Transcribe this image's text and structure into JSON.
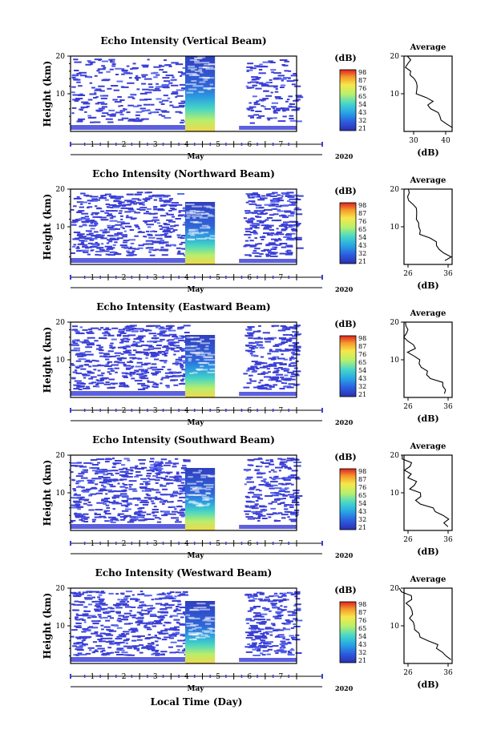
{
  "figure": {
    "xlabel": "Local Time (Day)"
  },
  "chart_data": [
    {
      "type": "heatmap",
      "title": "Echo Intensity (Vertical Beam)",
      "ylabel": "Height (km)",
      "month_label": "May",
      "year_label": "2020",
      "x_ticks": [
        "1",
        "2",
        "3",
        "4",
        "5",
        "6",
        "7"
      ],
      "y_ticks": [
        "10",
        "20"
      ],
      "ylim": [
        0,
        20
      ],
      "colorbar": {
        "unit": "(dB)",
        "ticks": [
          "98",
          "87",
          "76",
          "65",
          "54",
          "43",
          "32",
          "21"
        ]
      },
      "data_gap_days": [
        4.9,
        5.8
      ],
      "strong_echo_window_days": [
        3.95,
        4.9
      ],
      "average": {
        "title": "Average",
        "xlabel": "(dB)",
        "x_ticks": [
          "30",
          "40"
        ],
        "y_ticks": [
          "10",
          "20"
        ],
        "xlim": [
          27,
          42
        ],
        "ylim": [
          0,
          20
        ],
        "profile_heights": [
          1,
          2,
          3,
          4,
          5,
          6,
          7,
          8,
          9,
          10,
          11,
          12,
          13,
          14,
          15,
          16,
          17,
          18,
          19,
          20
        ],
        "profile_values": [
          41,
          40,
          38,
          37,
          37,
          35,
          35,
          35,
          33,
          32,
          32,
          31,
          30,
          30,
          29,
          29,
          28,
          28,
          28,
          27
        ]
      }
    },
    {
      "type": "heatmap",
      "title": "Echo Intensity (Northward Beam)",
      "ylabel": "Height (km)",
      "month_label": "May",
      "year_label": "2020",
      "x_ticks": [
        "1",
        "2",
        "3",
        "4",
        "5",
        "6",
        "7"
      ],
      "y_ticks": [
        "10",
        "20"
      ],
      "ylim": [
        0,
        20
      ],
      "colorbar": {
        "unit": "(dB)",
        "ticks": [
          "98",
          "87",
          "76",
          "65",
          "54",
          "43",
          "32",
          "21"
        ]
      },
      "data_gap_days": [
        4.9,
        5.8
      ],
      "strong_echo_window_days": [
        3.95,
        4.9
      ],
      "average": {
        "title": "Average",
        "xlabel": "(dB)",
        "x_ticks": [
          "26",
          "36"
        ],
        "y_ticks": [
          "10",
          "20"
        ],
        "xlim": [
          25,
          37
        ],
        "ylim": [
          0,
          20
        ],
        "profile_heights": [
          1,
          2,
          3,
          4,
          5,
          6,
          7,
          8,
          9,
          10,
          11,
          12,
          13,
          14,
          15,
          16,
          17,
          18,
          19,
          20
        ],
        "profile_values": [
          36,
          36,
          35,
          34,
          33,
          32,
          31,
          30,
          29,
          29,
          28,
          28,
          28,
          27,
          27,
          27,
          26,
          26,
          26,
          25
        ]
      }
    },
    {
      "type": "heatmap",
      "title": "Echo Intensity (Eastward Beam)",
      "ylabel": "Height (km)",
      "month_label": "May",
      "year_label": "2020",
      "x_ticks": [
        "1",
        "2",
        "3",
        "4",
        "5",
        "6",
        "7"
      ],
      "y_ticks": [
        "10",
        "20"
      ],
      "ylim": [
        0,
        20
      ],
      "colorbar": {
        "unit": "(dB)",
        "ticks": [
          "98",
          "87",
          "76",
          "65",
          "54",
          "43",
          "32",
          "21"
        ]
      },
      "data_gap_days": [
        4.9,
        5.8
      ],
      "strong_echo_window_days": [
        3.95,
        4.9
      ],
      "average": {
        "title": "Average",
        "xlabel": "(dB)",
        "x_ticks": [
          "26",
          "36"
        ],
        "y_ticks": [
          "10",
          "20"
        ],
        "xlim": [
          25,
          37
        ],
        "ylim": [
          0,
          20
        ],
        "profile_heights": [
          1,
          2,
          3,
          4,
          5,
          6,
          7,
          8,
          9,
          10,
          11,
          12,
          13,
          14,
          15,
          16,
          17,
          18,
          19,
          20
        ],
        "profile_values": [
          36,
          36,
          35,
          34,
          32,
          31,
          30,
          29,
          28,
          28,
          27,
          27,
          27,
          27,
          26,
          26,
          26,
          26,
          25,
          25
        ]
      }
    },
    {
      "type": "heatmap",
      "title": "Echo Intensity (Southward Beam)",
      "ylabel": "Height (km)",
      "month_label": "May",
      "year_label": "2020",
      "x_ticks": [
        "1",
        "2",
        "3",
        "4",
        "5",
        "6",
        "7"
      ],
      "y_ticks": [
        "10",
        "20"
      ],
      "ylim": [
        0,
        20
      ],
      "colorbar": {
        "unit": "(dB)",
        "ticks": [
          "98",
          "87",
          "76",
          "65",
          "54",
          "43",
          "32",
          "21"
        ]
      },
      "data_gap_days": [
        4.9,
        5.8
      ],
      "strong_echo_window_days": [
        3.95,
        4.9
      ],
      "average": {
        "title": "Average",
        "xlabel": "(dB)",
        "x_ticks": [
          "26",
          "36"
        ],
        "y_ticks": [
          "10",
          "20"
        ],
        "xlim": [
          25,
          37
        ],
        "ylim": [
          0,
          20
        ],
        "profile_heights": [
          1,
          2,
          3,
          4,
          5,
          6,
          7,
          8,
          9,
          10,
          11,
          12,
          13,
          14,
          15,
          16,
          17,
          18,
          19,
          20
        ],
        "profile_values": [
          36,
          36,
          35,
          34,
          33,
          32,
          30,
          29,
          28,
          28,
          27,
          27,
          27,
          27,
          26,
          26,
          26,
          26,
          25,
          25
        ]
      }
    },
    {
      "type": "heatmap",
      "title": "Echo Intensity (Westward Beam)",
      "ylabel": "Height (km)",
      "month_label": "May",
      "year_label": "2020",
      "x_ticks": [
        "1",
        "2",
        "3",
        "4",
        "5",
        "6",
        "7"
      ],
      "y_ticks": [
        "10",
        "20"
      ],
      "ylim": [
        0,
        20
      ],
      "colorbar": {
        "unit": "(dB)",
        "ticks": [
          "98",
          "87",
          "76",
          "65",
          "54",
          "43",
          "32",
          "21"
        ]
      },
      "data_gap_days": [
        4.9,
        5.8
      ],
      "strong_echo_window_days": [
        3.95,
        4.9
      ],
      "average": {
        "title": "Average",
        "xlabel": "(dB)",
        "x_ticks": [
          "26",
          "36"
        ],
        "y_ticks": [
          "10",
          "20"
        ],
        "xlim": [
          25,
          37
        ],
        "ylim": [
          0,
          20
        ],
        "profile_heights": [
          1,
          2,
          3,
          4,
          5,
          6,
          7,
          8,
          9,
          10,
          11,
          12,
          13,
          14,
          15,
          16,
          17,
          18,
          19,
          20
        ],
        "profile_values": [
          36,
          36,
          35,
          34,
          33,
          31,
          30,
          29,
          28,
          28,
          27,
          27,
          27,
          27,
          26,
          26,
          26,
          26,
          25,
          25
        ]
      }
    }
  ]
}
